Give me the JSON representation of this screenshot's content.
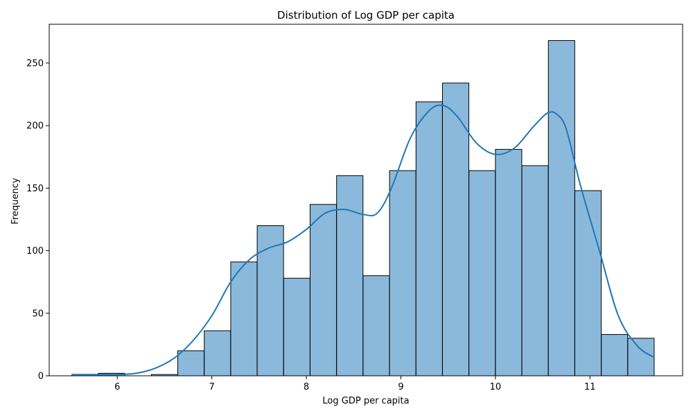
{
  "chart_data": {
    "type": "bar",
    "subtype": "histogram_with_kde",
    "title": "Distribution of Log GDP per capita",
    "xlabel": "Log GDP per capita",
    "ylabel": "Frequency",
    "xlim": [
      5.28,
      11.98
    ],
    "ylim": [
      0,
      281
    ],
    "x_ticks": [
      6,
      7,
      8,
      9,
      10,
      11
    ],
    "y_ticks": [
      0,
      50,
      100,
      150,
      200,
      250
    ],
    "bin_width": 0.279,
    "bins": [
      {
        "start": 5.52,
        "count": 1
      },
      {
        "start": 5.8,
        "count": 2
      },
      {
        "start": 6.08,
        "count": 0
      },
      {
        "start": 6.36,
        "count": 1
      },
      {
        "start": 6.64,
        "count": 20
      },
      {
        "start": 6.92,
        "count": 36
      },
      {
        "start": 7.2,
        "count": 91
      },
      {
        "start": 7.48,
        "count": 120
      },
      {
        "start": 7.76,
        "count": 78
      },
      {
        "start": 8.04,
        "count": 137
      },
      {
        "start": 8.32,
        "count": 160
      },
      {
        "start": 8.6,
        "count": 80
      },
      {
        "start": 8.88,
        "count": 164
      },
      {
        "start": 9.16,
        "count": 219
      },
      {
        "start": 9.44,
        "count": 234
      },
      {
        "start": 9.72,
        "count": 164
      },
      {
        "start": 10.0,
        "count": 181
      },
      {
        "start": 10.28,
        "count": 168
      },
      {
        "start": 10.56,
        "count": 268
      },
      {
        "start": 10.84,
        "count": 148
      },
      {
        "start": 11.12,
        "count": 33
      },
      {
        "start": 11.4,
        "count": 30
      }
    ],
    "kde": {
      "x": [
        5.52,
        5.8,
        6.0,
        6.2,
        6.4,
        6.6,
        6.8,
        7.0,
        7.2,
        7.4,
        7.6,
        7.8,
        8.0,
        8.2,
        8.4,
        8.6,
        8.75,
        8.9,
        9.1,
        9.3,
        9.45,
        9.6,
        9.8,
        10.0,
        10.2,
        10.4,
        10.55,
        10.65,
        10.75,
        10.9,
        11.1,
        11.3,
        11.5,
        11.67
      ],
      "y": [
        1,
        1,
        1,
        2,
        6,
        14,
        28,
        48,
        75,
        93,
        102,
        107,
        117,
        130,
        133,
        129,
        130,
        150,
        190,
        212,
        216,
        207,
        186,
        177,
        182,
        199,
        210,
        209,
        197,
        152,
        100,
        48,
        24,
        15
      ]
    },
    "bar_color": "#8bb9dc",
    "line_color": "#1f77b4",
    "grid": false,
    "legend": "none"
  }
}
